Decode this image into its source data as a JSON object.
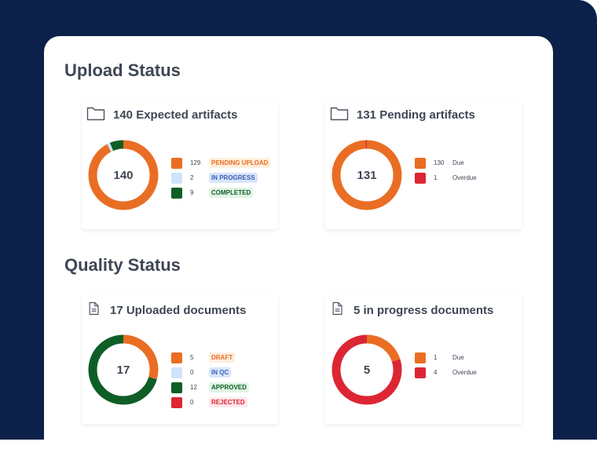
{
  "upload_status": {
    "title": "Upload Status",
    "cards": [
      {
        "title": "140 Expected artifacts",
        "icon": "folder-icon",
        "total": "140",
        "items": [
          {
            "count": 129,
            "label": "PENDING UPLOAD",
            "color": "#e96e24",
            "tag_bg": "#fdeedd",
            "tag_fg": "#e96e24"
          },
          {
            "count": 2,
            "label": "IN PROGRESS",
            "color": "#cfe3fb",
            "tag_bg": "#d8e6fb",
            "tag_fg": "#3d5fb8"
          },
          {
            "count": 9,
            "label": "COMPLETED",
            "color": "#0f5e26",
            "tag_bg": "#e1f4e5",
            "tag_fg": "#0f5e26"
          }
        ]
      },
      {
        "title": "131 Pending artifacts",
        "icon": "folder-icon",
        "total": "131",
        "items": [
          {
            "count": 130,
            "label": "Due",
            "color": "#e96e24"
          },
          {
            "count": 1,
            "label": "Overdue",
            "color": "#dc2634"
          }
        ]
      }
    ]
  },
  "quality_status": {
    "title": "Quality Status",
    "cards": [
      {
        "title": "17 Uploaded documents",
        "icon": "document-icon",
        "total": "17",
        "items": [
          {
            "count": 5,
            "label": "DRAFT",
            "color": "#e96e24",
            "tag_bg": "#fdeedd",
            "tag_fg": "#e96e24"
          },
          {
            "count": 0,
            "label": "IN QC",
            "color": "#cfe3fb",
            "tag_bg": "#d8e6fb",
            "tag_fg": "#3d5fb8"
          },
          {
            "count": 12,
            "label": "APPROVED",
            "color": "#0f5e26",
            "tag_bg": "#e1f4e5",
            "tag_fg": "#0f5e26"
          },
          {
            "count": 0,
            "label": "REJECTED",
            "color": "#dc2634",
            "tag_bg": "#fde6ea",
            "tag_fg": "#dc2634"
          }
        ]
      },
      {
        "title": "5 in progress documents",
        "icon": "document-icon",
        "total": "5",
        "items": [
          {
            "count": 1,
            "label": "Due",
            "color": "#e96e24"
          },
          {
            "count": 4,
            "label": "Overdue",
            "color": "#dc2634"
          }
        ]
      }
    ]
  }
}
